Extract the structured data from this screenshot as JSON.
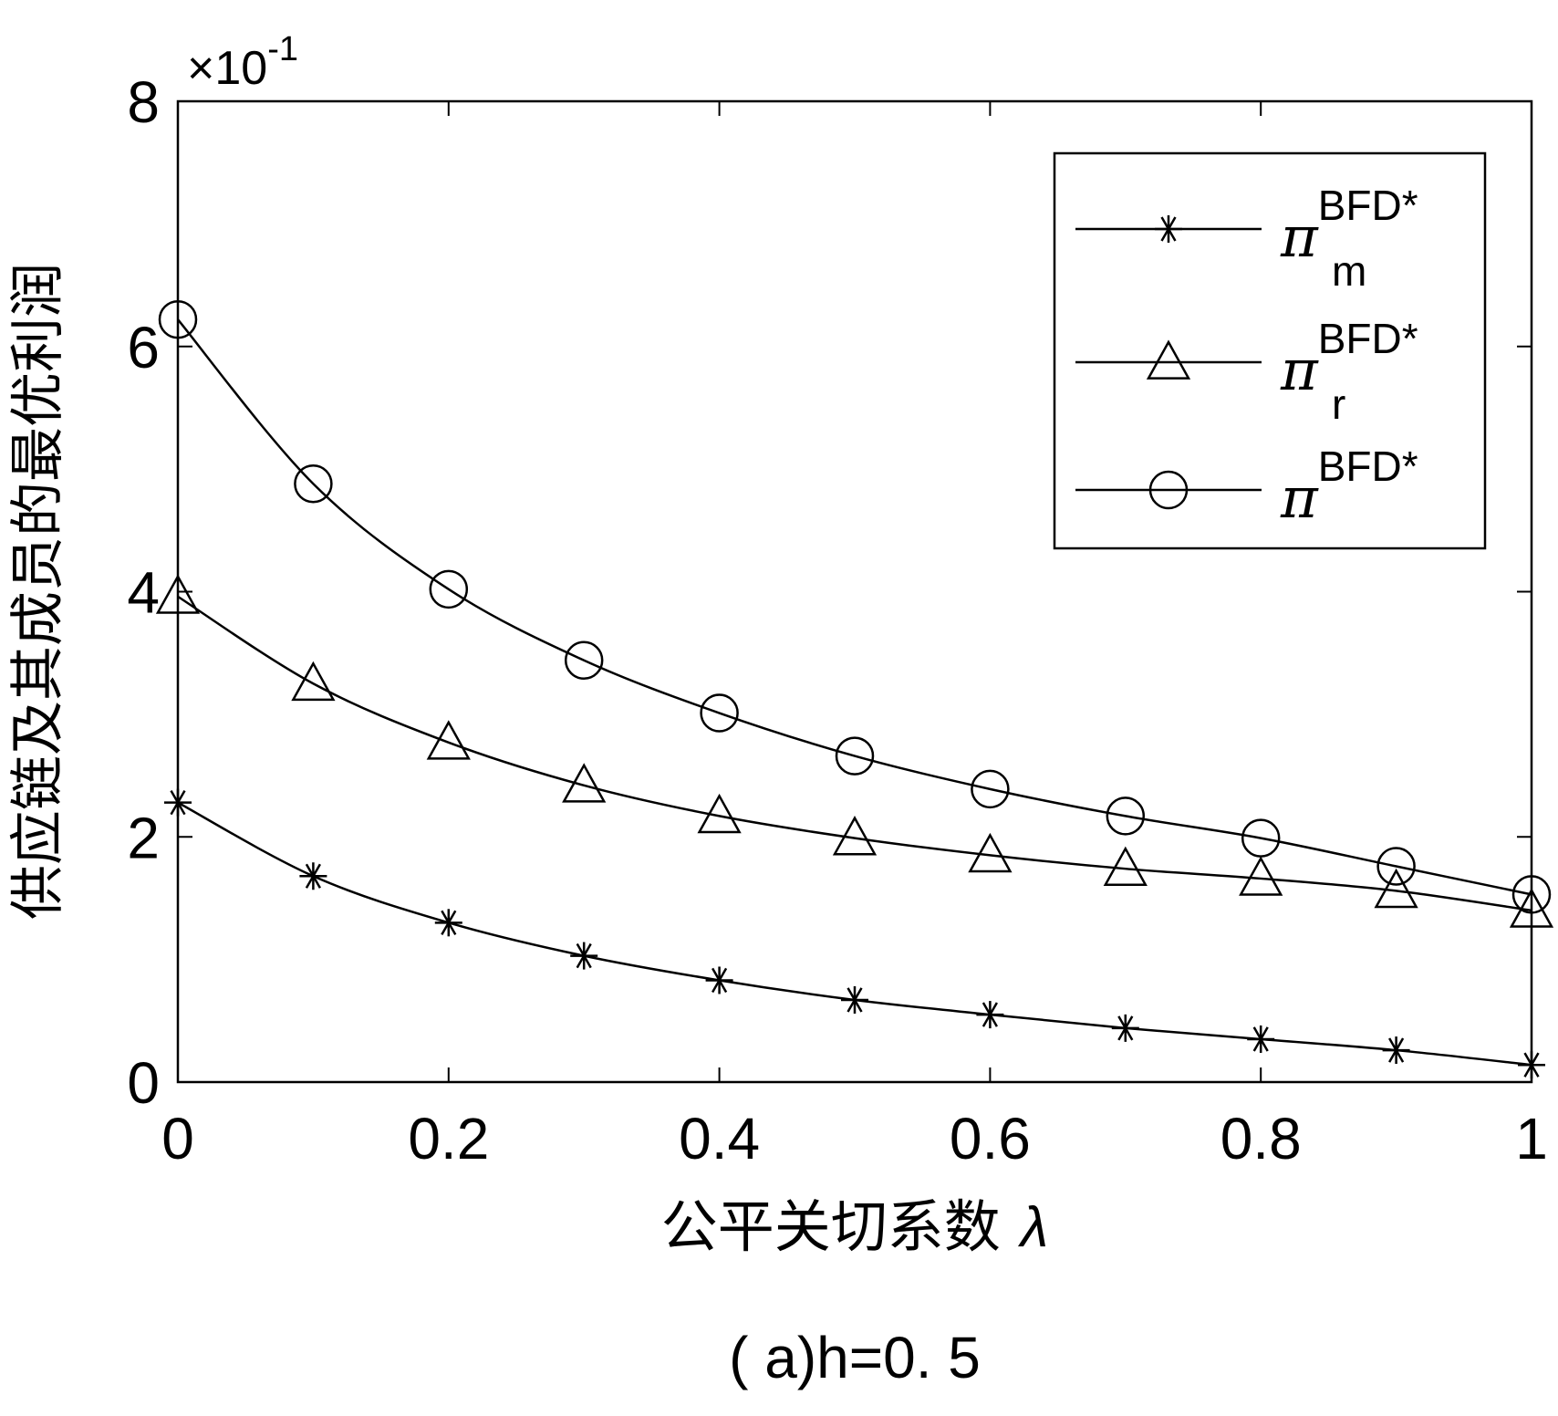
{
  "chart_data": {
    "type": "line",
    "title": "",
    "caption": "( a)h=0. 5",
    "xlabel": "公平关切系数",
    "xlabel_symbol": "λ",
    "ylabel": "供应链及其成员的最优利润",
    "y_multiplier_label": "×10",
    "y_multiplier_exp": "-1",
    "xlim": [
      0,
      1
    ],
    "ylim": [
      0,
      8
    ],
    "x_ticks": [
      "0",
      "0.2",
      "0.4",
      "0.6",
      "0.8",
      "1"
    ],
    "y_ticks": [
      "0",
      "2",
      "4",
      "6",
      "8"
    ],
    "x_tick_values": [
      0,
      0.2,
      0.4,
      0.6,
      0.8,
      1
    ],
    "y_tick_values": [
      0,
      2,
      4,
      6,
      8
    ],
    "grid": false,
    "legend_position": "top-right",
    "x": [
      0,
      0.1,
      0.2,
      0.3,
      0.4,
      0.5,
      0.6,
      0.7,
      0.8,
      0.9,
      1.0
    ],
    "series": [
      {
        "name_base": "π",
        "name_sup": "BFD*",
        "name_sub": "m",
        "marker": "star",
        "values": [
          2.28,
          1.68,
          1.3,
          1.03,
          0.83,
          0.67,
          0.55,
          0.44,
          0.35,
          0.26,
          0.14
        ]
      },
      {
        "name_base": "π",
        "name_sup": "BFD*",
        "name_sub": "r",
        "marker": "triangle",
        "values": [
          3.96,
          3.25,
          2.77,
          2.42,
          2.17,
          1.99,
          1.85,
          1.74,
          1.66,
          1.56,
          1.4
        ]
      },
      {
        "name_base": "π",
        "name_sup": "BFD*",
        "name_sub": "",
        "marker": "circle",
        "values": [
          6.22,
          4.88,
          4.02,
          3.44,
          3.01,
          2.66,
          2.39,
          2.17,
          1.99,
          1.76,
          1.53
        ]
      }
    ],
    "colors": {
      "line": "#000000",
      "background": "#ffffff"
    }
  }
}
